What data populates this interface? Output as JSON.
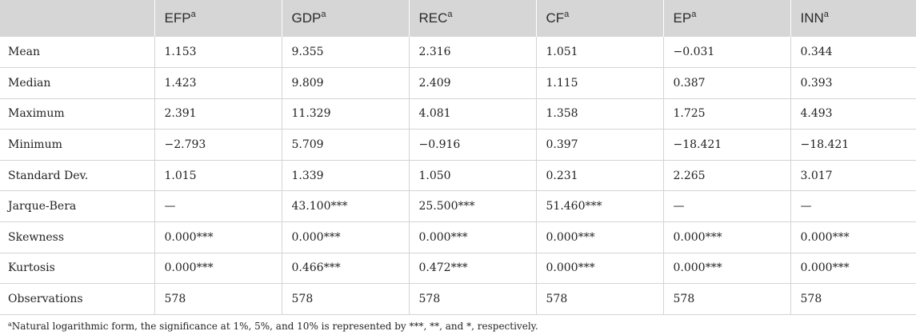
{
  "table": {
    "columns": [
      {
        "label": "",
        "sup": ""
      },
      {
        "label": "EFP",
        "sup": "a"
      },
      {
        "label": "GDP",
        "sup": "a"
      },
      {
        "label": "REC",
        "sup": "a"
      },
      {
        "label": "CF",
        "sup": "a"
      },
      {
        "label": "EP",
        "sup": "a"
      },
      {
        "label": "INN",
        "sup": "a"
      }
    ],
    "rows": [
      [
        "Mean",
        "1.153",
        "9.355",
        "2.316",
        "1.051",
        "−0.031",
        "0.344"
      ],
      [
        "Median",
        "1.423",
        "9.809",
        "2.409",
        "1.115",
        "0.387",
        "0.393"
      ],
      [
        "Maximum",
        "2.391",
        "11.329",
        "4.081",
        "1.358",
        "1.725",
        "4.493"
      ],
      [
        "Minimum",
        "−2.793",
        "5.709",
        "−0.916",
        "0.397",
        "−18.421",
        "−18.421"
      ],
      [
        "Standard Dev.",
        "1.015",
        "1.339",
        "1.050",
        "0.231",
        "2.265",
        "3.017"
      ],
      [
        "Jarque-Bera",
        "—",
        "43.100***",
        "25.500***",
        "51.460***",
        "—",
        "—"
      ],
      [
        "Skewness",
        "0.000***",
        "0.000***",
        "0.000***",
        "0.000***",
        "0.000***",
        "0.000***"
      ],
      [
        "Kurtosis",
        "0.000***",
        "0.466***",
        "0.472***",
        "0.000***",
        "0.000***",
        "0.000***"
      ],
      [
        "Observations",
        "578",
        "578",
        "578",
        "578",
        "578",
        "578"
      ]
    ]
  },
  "footnote": {
    "sup": "a",
    "text": "Natural logarithmic form, the significance at 1%, 5%, and 10% is represented by ***, **, and *, respectively."
  }
}
